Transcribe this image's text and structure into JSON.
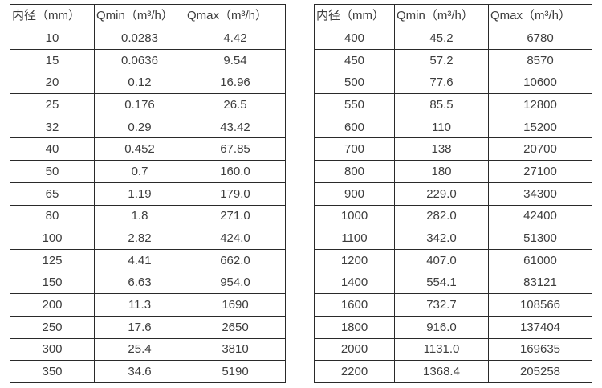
{
  "colors": {
    "background": "#ffffff",
    "border": "#2a2a2a",
    "text": "#3d3d3d"
  },
  "tables": [
    {
      "name": "flow-table-small-diameters",
      "headers": [
        "内径（mm）",
        "Qmin（m³/h）",
        "Qmax（m³/h）"
      ],
      "rows": [
        [
          "10",
          "0.0283",
          "4.42"
        ],
        [
          "15",
          "0.0636",
          "9.54"
        ],
        [
          "20",
          "0.12",
          "16.96"
        ],
        [
          "25",
          "0.176",
          "26.5"
        ],
        [
          "32",
          "0.29",
          "43.42"
        ],
        [
          "40",
          "0.452",
          "67.85"
        ],
        [
          "50",
          "0.7",
          "160.0"
        ],
        [
          "65",
          "1.19",
          "179.0"
        ],
        [
          "80",
          "1.8",
          "271.0"
        ],
        [
          "100",
          "2.82",
          "424.0"
        ],
        [
          "125",
          "4.41",
          "662.0"
        ],
        [
          "150",
          "6.63",
          "954.0"
        ],
        [
          "200",
          "11.3",
          "1690"
        ],
        [
          "250",
          "17.6",
          "2650"
        ],
        [
          "300",
          "25.4",
          "3810"
        ],
        [
          "350",
          "34.6",
          "5190"
        ]
      ]
    },
    {
      "name": "flow-table-large-diameters",
      "headers": [
        "内径（mm）",
        "Qmin（m³/h）",
        "Qmax（m³/h）"
      ],
      "rows": [
        [
          "400",
          "45.2",
          "6780"
        ],
        [
          "450",
          "57.2",
          "8570"
        ],
        [
          "500",
          "77.6",
          "10600"
        ],
        [
          "550",
          "85.5",
          "12800"
        ],
        [
          "600",
          "110",
          "15200"
        ],
        [
          "700",
          "138",
          "20700"
        ],
        [
          "800",
          "180",
          "27100"
        ],
        [
          "900",
          "229.0",
          "34300"
        ],
        [
          "1000",
          "282.0",
          "42400"
        ],
        [
          "1100",
          "342.0",
          "51300"
        ],
        [
          "1200",
          "407.0",
          "61000"
        ],
        [
          "1400",
          "554.1",
          "83121"
        ],
        [
          "1600",
          "732.7",
          "108566"
        ],
        [
          "1800",
          "916.0",
          "137404"
        ],
        [
          "2000",
          "1131.0",
          "169635"
        ],
        [
          "2200",
          "1368.4",
          "205258"
        ]
      ]
    }
  ]
}
